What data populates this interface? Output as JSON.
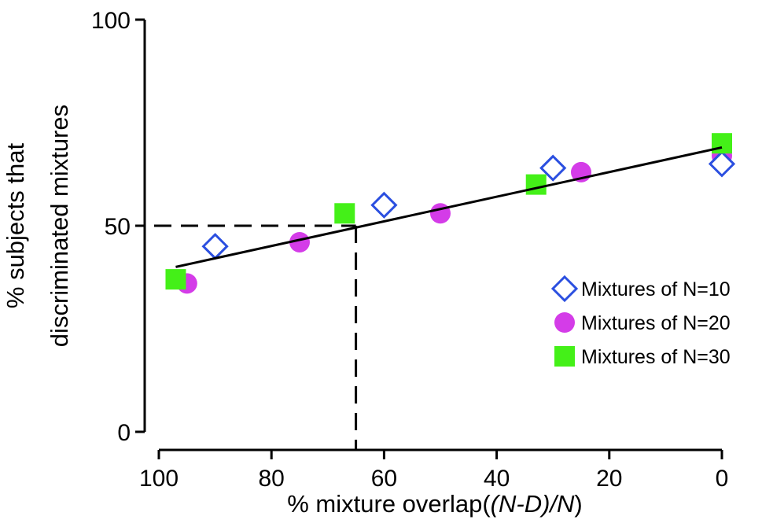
{
  "chart_data": {
    "type": "scatter",
    "xlabel_plain": "% mixture overlap(",
    "xlabel_italic": "(N-D)/N",
    "xlabel_close": ")",
    "ylabel_line1": "% subjects that",
    "ylabel_line2": "discriminated mixtures",
    "xlim": [
      100,
      0
    ],
    "ylim": [
      0,
      100
    ],
    "x_ticks": [
      100,
      80,
      60,
      40,
      20,
      0
    ],
    "y_ticks": [
      100,
      50,
      0
    ],
    "series": [
      {
        "name": "Mixtures of N=10",
        "marker": "diamond",
        "color": "#2b4fe0",
        "points": [
          [
            90,
            45
          ],
          [
            60,
            55
          ],
          [
            30,
            64
          ],
          [
            0,
            65
          ]
        ]
      },
      {
        "name": "Mixtures of N=20",
        "marker": "circle",
        "color": "#d43ce8",
        "points": [
          [
            95,
            36
          ],
          [
            75,
            46
          ],
          [
            50,
            53
          ],
          [
            25,
            63
          ],
          [
            0,
            67
          ]
        ]
      },
      {
        "name": "Mixtures of N=30",
        "marker": "square",
        "color": "#44f018",
        "points": [
          [
            97,
            37
          ],
          [
            67,
            53
          ],
          [
            33,
            60
          ],
          [
            0,
            70
          ]
        ]
      }
    ],
    "fit_line": [
      [
        97,
        40
      ],
      [
        0,
        69
      ]
    ],
    "threshold": {
      "y": 50,
      "x": 65
    },
    "legend_position": "right"
  }
}
